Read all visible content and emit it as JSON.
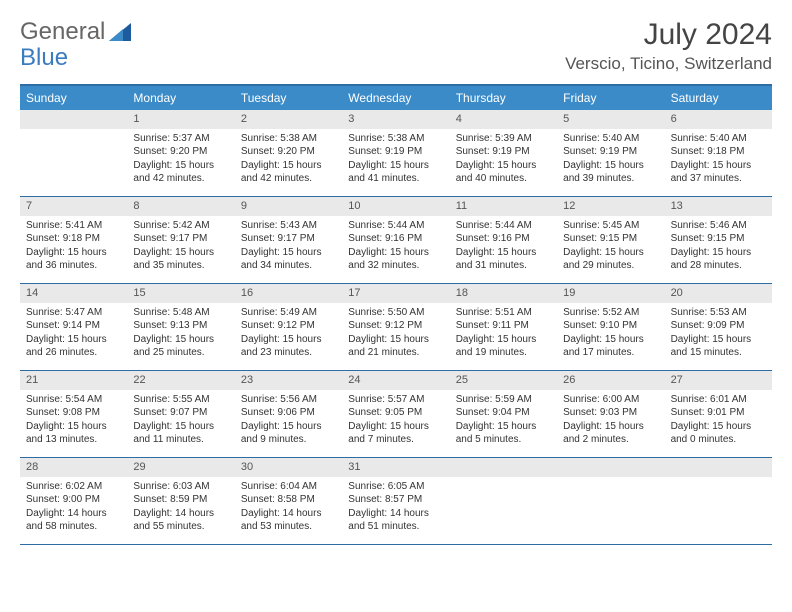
{
  "brand": {
    "part1": "General",
    "part2": "Blue"
  },
  "title": "July 2024",
  "location": "Verscio, Ticino, Switzerland",
  "colors": {
    "header_bg": "#3b8bc9",
    "border": "#2e6da4",
    "daynum_bg": "#e9e9e9",
    "brand_gray": "#666666",
    "brand_blue": "#3b7bbf"
  },
  "fonts": {
    "title_size": 30,
    "location_size": 17,
    "dow_size": 12,
    "daynum_size": 11,
    "body_size": 10
  },
  "days_of_week": [
    "Sunday",
    "Monday",
    "Tuesday",
    "Wednesday",
    "Thursday",
    "Friday",
    "Saturday"
  ],
  "weeks": [
    [
      {
        "n": "",
        "sunrise": "",
        "sunset": "",
        "daylight": ""
      },
      {
        "n": "1",
        "sunrise": "Sunrise: 5:37 AM",
        "sunset": "Sunset: 9:20 PM",
        "daylight": "Daylight: 15 hours and 42 minutes."
      },
      {
        "n": "2",
        "sunrise": "Sunrise: 5:38 AM",
        "sunset": "Sunset: 9:20 PM",
        "daylight": "Daylight: 15 hours and 42 minutes."
      },
      {
        "n": "3",
        "sunrise": "Sunrise: 5:38 AM",
        "sunset": "Sunset: 9:19 PM",
        "daylight": "Daylight: 15 hours and 41 minutes."
      },
      {
        "n": "4",
        "sunrise": "Sunrise: 5:39 AM",
        "sunset": "Sunset: 9:19 PM",
        "daylight": "Daylight: 15 hours and 40 minutes."
      },
      {
        "n": "5",
        "sunrise": "Sunrise: 5:40 AM",
        "sunset": "Sunset: 9:19 PM",
        "daylight": "Daylight: 15 hours and 39 minutes."
      },
      {
        "n": "6",
        "sunrise": "Sunrise: 5:40 AM",
        "sunset": "Sunset: 9:18 PM",
        "daylight": "Daylight: 15 hours and 37 minutes."
      }
    ],
    [
      {
        "n": "7",
        "sunrise": "Sunrise: 5:41 AM",
        "sunset": "Sunset: 9:18 PM",
        "daylight": "Daylight: 15 hours and 36 minutes."
      },
      {
        "n": "8",
        "sunrise": "Sunrise: 5:42 AM",
        "sunset": "Sunset: 9:17 PM",
        "daylight": "Daylight: 15 hours and 35 minutes."
      },
      {
        "n": "9",
        "sunrise": "Sunrise: 5:43 AM",
        "sunset": "Sunset: 9:17 PM",
        "daylight": "Daylight: 15 hours and 34 minutes."
      },
      {
        "n": "10",
        "sunrise": "Sunrise: 5:44 AM",
        "sunset": "Sunset: 9:16 PM",
        "daylight": "Daylight: 15 hours and 32 minutes."
      },
      {
        "n": "11",
        "sunrise": "Sunrise: 5:44 AM",
        "sunset": "Sunset: 9:16 PM",
        "daylight": "Daylight: 15 hours and 31 minutes."
      },
      {
        "n": "12",
        "sunrise": "Sunrise: 5:45 AM",
        "sunset": "Sunset: 9:15 PM",
        "daylight": "Daylight: 15 hours and 29 minutes."
      },
      {
        "n": "13",
        "sunrise": "Sunrise: 5:46 AM",
        "sunset": "Sunset: 9:15 PM",
        "daylight": "Daylight: 15 hours and 28 minutes."
      }
    ],
    [
      {
        "n": "14",
        "sunrise": "Sunrise: 5:47 AM",
        "sunset": "Sunset: 9:14 PM",
        "daylight": "Daylight: 15 hours and 26 minutes."
      },
      {
        "n": "15",
        "sunrise": "Sunrise: 5:48 AM",
        "sunset": "Sunset: 9:13 PM",
        "daylight": "Daylight: 15 hours and 25 minutes."
      },
      {
        "n": "16",
        "sunrise": "Sunrise: 5:49 AM",
        "sunset": "Sunset: 9:12 PM",
        "daylight": "Daylight: 15 hours and 23 minutes."
      },
      {
        "n": "17",
        "sunrise": "Sunrise: 5:50 AM",
        "sunset": "Sunset: 9:12 PM",
        "daylight": "Daylight: 15 hours and 21 minutes."
      },
      {
        "n": "18",
        "sunrise": "Sunrise: 5:51 AM",
        "sunset": "Sunset: 9:11 PM",
        "daylight": "Daylight: 15 hours and 19 minutes."
      },
      {
        "n": "19",
        "sunrise": "Sunrise: 5:52 AM",
        "sunset": "Sunset: 9:10 PM",
        "daylight": "Daylight: 15 hours and 17 minutes."
      },
      {
        "n": "20",
        "sunrise": "Sunrise: 5:53 AM",
        "sunset": "Sunset: 9:09 PM",
        "daylight": "Daylight: 15 hours and 15 minutes."
      }
    ],
    [
      {
        "n": "21",
        "sunrise": "Sunrise: 5:54 AM",
        "sunset": "Sunset: 9:08 PM",
        "daylight": "Daylight: 15 hours and 13 minutes."
      },
      {
        "n": "22",
        "sunrise": "Sunrise: 5:55 AM",
        "sunset": "Sunset: 9:07 PM",
        "daylight": "Daylight: 15 hours and 11 minutes."
      },
      {
        "n": "23",
        "sunrise": "Sunrise: 5:56 AM",
        "sunset": "Sunset: 9:06 PM",
        "daylight": "Daylight: 15 hours and 9 minutes."
      },
      {
        "n": "24",
        "sunrise": "Sunrise: 5:57 AM",
        "sunset": "Sunset: 9:05 PM",
        "daylight": "Daylight: 15 hours and 7 minutes."
      },
      {
        "n": "25",
        "sunrise": "Sunrise: 5:59 AM",
        "sunset": "Sunset: 9:04 PM",
        "daylight": "Daylight: 15 hours and 5 minutes."
      },
      {
        "n": "26",
        "sunrise": "Sunrise: 6:00 AM",
        "sunset": "Sunset: 9:03 PM",
        "daylight": "Daylight: 15 hours and 2 minutes."
      },
      {
        "n": "27",
        "sunrise": "Sunrise: 6:01 AM",
        "sunset": "Sunset: 9:01 PM",
        "daylight": "Daylight: 15 hours and 0 minutes."
      }
    ],
    [
      {
        "n": "28",
        "sunrise": "Sunrise: 6:02 AM",
        "sunset": "Sunset: 9:00 PM",
        "daylight": "Daylight: 14 hours and 58 minutes."
      },
      {
        "n": "29",
        "sunrise": "Sunrise: 6:03 AM",
        "sunset": "Sunset: 8:59 PM",
        "daylight": "Daylight: 14 hours and 55 minutes."
      },
      {
        "n": "30",
        "sunrise": "Sunrise: 6:04 AM",
        "sunset": "Sunset: 8:58 PM",
        "daylight": "Daylight: 14 hours and 53 minutes."
      },
      {
        "n": "31",
        "sunrise": "Sunrise: 6:05 AM",
        "sunset": "Sunset: 8:57 PM",
        "daylight": "Daylight: 14 hours and 51 minutes."
      },
      {
        "n": "",
        "sunrise": "",
        "sunset": "",
        "daylight": ""
      },
      {
        "n": "",
        "sunrise": "",
        "sunset": "",
        "daylight": ""
      },
      {
        "n": "",
        "sunrise": "",
        "sunset": "",
        "daylight": ""
      }
    ]
  ]
}
